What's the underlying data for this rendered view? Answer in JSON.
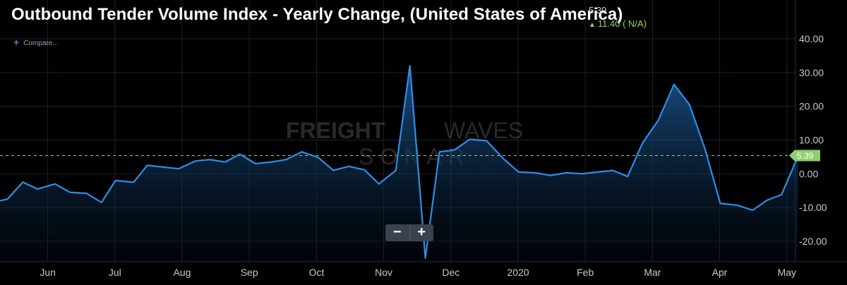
{
  "header": {
    "title": "Outbound Tender Volume Index - Yearly Change, (United States of America)",
    "last_value": "5.39",
    "change": "11.40 ( N/A)"
  },
  "compare_label": "Compare...",
  "watermark": {
    "brand_a": "FREIGHT",
    "brand_b": "WAVES",
    "sub": "SONAR"
  },
  "zoom": {
    "minus": "−",
    "plus": "+"
  },
  "colors": {
    "line": "#2e8ee6",
    "badge": "#8fcf6c",
    "positive": "#9bd36b",
    "background": "#000000"
  },
  "chart_data": {
    "type": "area",
    "title": "Outbound Tender Volume Index - Yearly Change, (United States of America)",
    "y_ticks": [
      "40.00",
      "30.00",
      "20.00",
      "10.00",
      "0.00",
      "-10.00",
      "-20.00"
    ],
    "ylim": [
      -25,
      44
    ],
    "grid": true,
    "last_value_label": "5.39",
    "reference_value": 5.39,
    "x_ticks": [
      {
        "label": "Jun",
        "x": 0.71
      },
      {
        "label": "Jul",
        "x": 1.71
      },
      {
        "label": "Aug",
        "x": 2.71
      },
      {
        "label": "Sep",
        "x": 3.71
      },
      {
        "label": "Oct",
        "x": 4.71
      },
      {
        "label": "Nov",
        "x": 5.71
      },
      {
        "label": "Dec",
        "x": 6.71
      },
      {
        "label": "2020",
        "x": 7.71
      },
      {
        "label": "Feb",
        "x": 8.71
      },
      {
        "label": "Mar",
        "x": 9.71
      },
      {
        "label": "Apr",
        "x": 10.71
      },
      {
        "label": "May",
        "x": 11.71
      }
    ],
    "points": [
      [
        0.0,
        -8.0
      ],
      [
        0.11,
        -7.5
      ],
      [
        0.34,
        -2.5
      ],
      [
        0.56,
        -4.5
      ],
      [
        0.82,
        -3.0
      ],
      [
        1.04,
        -5.5
      ],
      [
        1.29,
        -5.8
      ],
      [
        1.51,
        -8.5
      ],
      [
        1.72,
        -2.0
      ],
      [
        1.99,
        -2.5
      ],
      [
        2.19,
        2.5
      ],
      [
        2.43,
        2.0
      ],
      [
        2.66,
        1.5
      ],
      [
        2.91,
        3.8
      ],
      [
        3.12,
        4.2
      ],
      [
        3.35,
        3.5
      ],
      [
        3.57,
        5.8
      ],
      [
        3.8,
        3.0
      ],
      [
        4.04,
        3.5
      ],
      [
        4.26,
        4.2
      ],
      [
        4.49,
        6.5
      ],
      [
        4.74,
        4.8
      ],
      [
        4.96,
        1.0
      ],
      [
        5.19,
        2.2
      ],
      [
        5.42,
        1.2
      ],
      [
        5.64,
        -3.0
      ],
      [
        5.89,
        1.0
      ],
      [
        6.1,
        32.0
      ],
      [
        6.33,
        -25.0
      ],
      [
        6.54,
        6.5
      ],
      [
        6.76,
        7.0
      ],
      [
        6.99,
        10.2
      ],
      [
        7.24,
        9.8
      ],
      [
        7.49,
        4.5
      ],
      [
        7.72,
        0.5
      ],
      [
        7.96,
        0.3
      ],
      [
        8.19,
        -0.5
      ],
      [
        8.43,
        0.3
      ],
      [
        8.66,
        0.0
      ],
      [
        8.89,
        0.5
      ],
      [
        9.12,
        1.0
      ],
      [
        9.34,
        -0.8
      ],
      [
        9.56,
        9.0
      ],
      [
        9.8,
        16.0
      ],
      [
        10.03,
        26.5
      ],
      [
        10.26,
        20.5
      ],
      [
        10.49,
        7.5
      ],
      [
        10.72,
        -8.8
      ],
      [
        10.97,
        -9.3
      ],
      [
        11.2,
        -10.8
      ],
      [
        11.42,
        -7.8
      ],
      [
        11.63,
        -6.2
      ],
      [
        11.88,
        5.39
      ]
    ]
  }
}
